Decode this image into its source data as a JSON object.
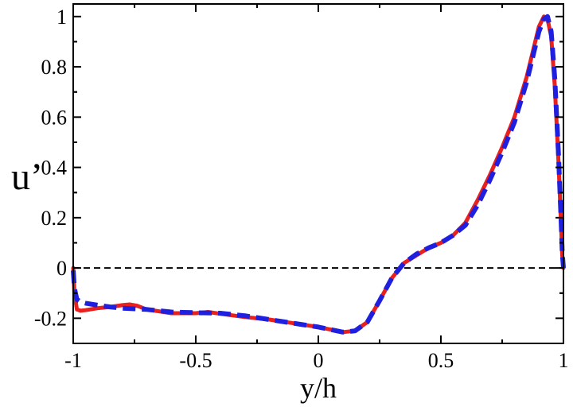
{
  "chart_data": {
    "type": "line",
    "xlabel": "y/h",
    "ylabel": "u’",
    "xlim": [
      -1,
      1
    ],
    "ylim": [
      -0.3,
      1.05
    ],
    "xticks": [
      -1,
      -0.5,
      0,
      0.5,
      1
    ],
    "yticks": [
      -0.2,
      0,
      0.2,
      0.4,
      0.6,
      0.8,
      1
    ],
    "xtick_labels": [
      "-1",
      "-0.5",
      "0",
      "0.5",
      "1"
    ],
    "ytick_labels": [
      "-0.2",
      "0",
      "0.2",
      "0.4",
      "0.6",
      "0.8",
      "1"
    ],
    "grid": false,
    "reference_line": {
      "y": 0,
      "style": "dashed",
      "color": "#000000"
    },
    "series": [
      {
        "color": "#e8201e",
        "style": "solid",
        "x": [
          -1.0,
          -0.995,
          -0.985,
          -0.97,
          -0.95,
          -0.9,
          -0.85,
          -0.8,
          -0.77,
          -0.74,
          -0.7,
          -0.6,
          -0.5,
          -0.45,
          -0.4,
          -0.3,
          -0.2,
          -0.1,
          0.0,
          0.05,
          0.1,
          0.15,
          0.2,
          0.25,
          0.3,
          0.35,
          0.4,
          0.45,
          0.5,
          0.55,
          0.6,
          0.65,
          0.7,
          0.75,
          0.8,
          0.85,
          0.88,
          0.9,
          0.92,
          0.935,
          0.95,
          0.965,
          0.98,
          0.99,
          0.995,
          1.0
        ],
        "y": [
          0.0,
          -0.1,
          -0.165,
          -0.17,
          -0.168,
          -0.16,
          -0.155,
          -0.148,
          -0.145,
          -0.15,
          -0.165,
          -0.18,
          -0.18,
          -0.175,
          -0.182,
          -0.195,
          -0.205,
          -0.22,
          -0.235,
          -0.245,
          -0.255,
          -0.25,
          -0.215,
          -0.13,
          -0.04,
          0.02,
          0.05,
          0.08,
          0.1,
          0.13,
          0.18,
          0.27,
          0.37,
          0.48,
          0.6,
          0.76,
          0.88,
          0.96,
          1.0,
          0.99,
          0.92,
          0.72,
          0.42,
          0.18,
          0.05,
          0.0
        ]
      },
      {
        "color": "#1f1fe0",
        "style": "dashed",
        "x": [
          -1.0,
          -0.995,
          -0.985,
          -0.97,
          -0.95,
          -0.9,
          -0.85,
          -0.8,
          -0.7,
          -0.6,
          -0.5,
          -0.4,
          -0.3,
          -0.2,
          -0.1,
          0.0,
          0.05,
          0.1,
          0.15,
          0.2,
          0.25,
          0.3,
          0.35,
          0.4,
          0.45,
          0.5,
          0.55,
          0.6,
          0.65,
          0.7,
          0.75,
          0.8,
          0.85,
          0.88,
          0.9,
          0.92,
          0.935,
          0.95,
          0.965,
          0.98,
          0.99,
          0.995,
          1.0
        ],
        "y": [
          -0.01,
          -0.08,
          -0.125,
          -0.135,
          -0.14,
          -0.148,
          -0.155,
          -0.16,
          -0.165,
          -0.175,
          -0.178,
          -0.18,
          -0.19,
          -0.205,
          -0.22,
          -0.235,
          -0.245,
          -0.255,
          -0.25,
          -0.215,
          -0.13,
          -0.04,
          0.02,
          0.055,
          0.08,
          0.1,
          0.13,
          0.17,
          0.25,
          0.35,
          0.46,
          0.58,
          0.74,
          0.86,
          0.94,
          0.99,
          1.0,
          0.94,
          0.75,
          0.45,
          0.2,
          0.06,
          0.0
        ]
      }
    ]
  }
}
